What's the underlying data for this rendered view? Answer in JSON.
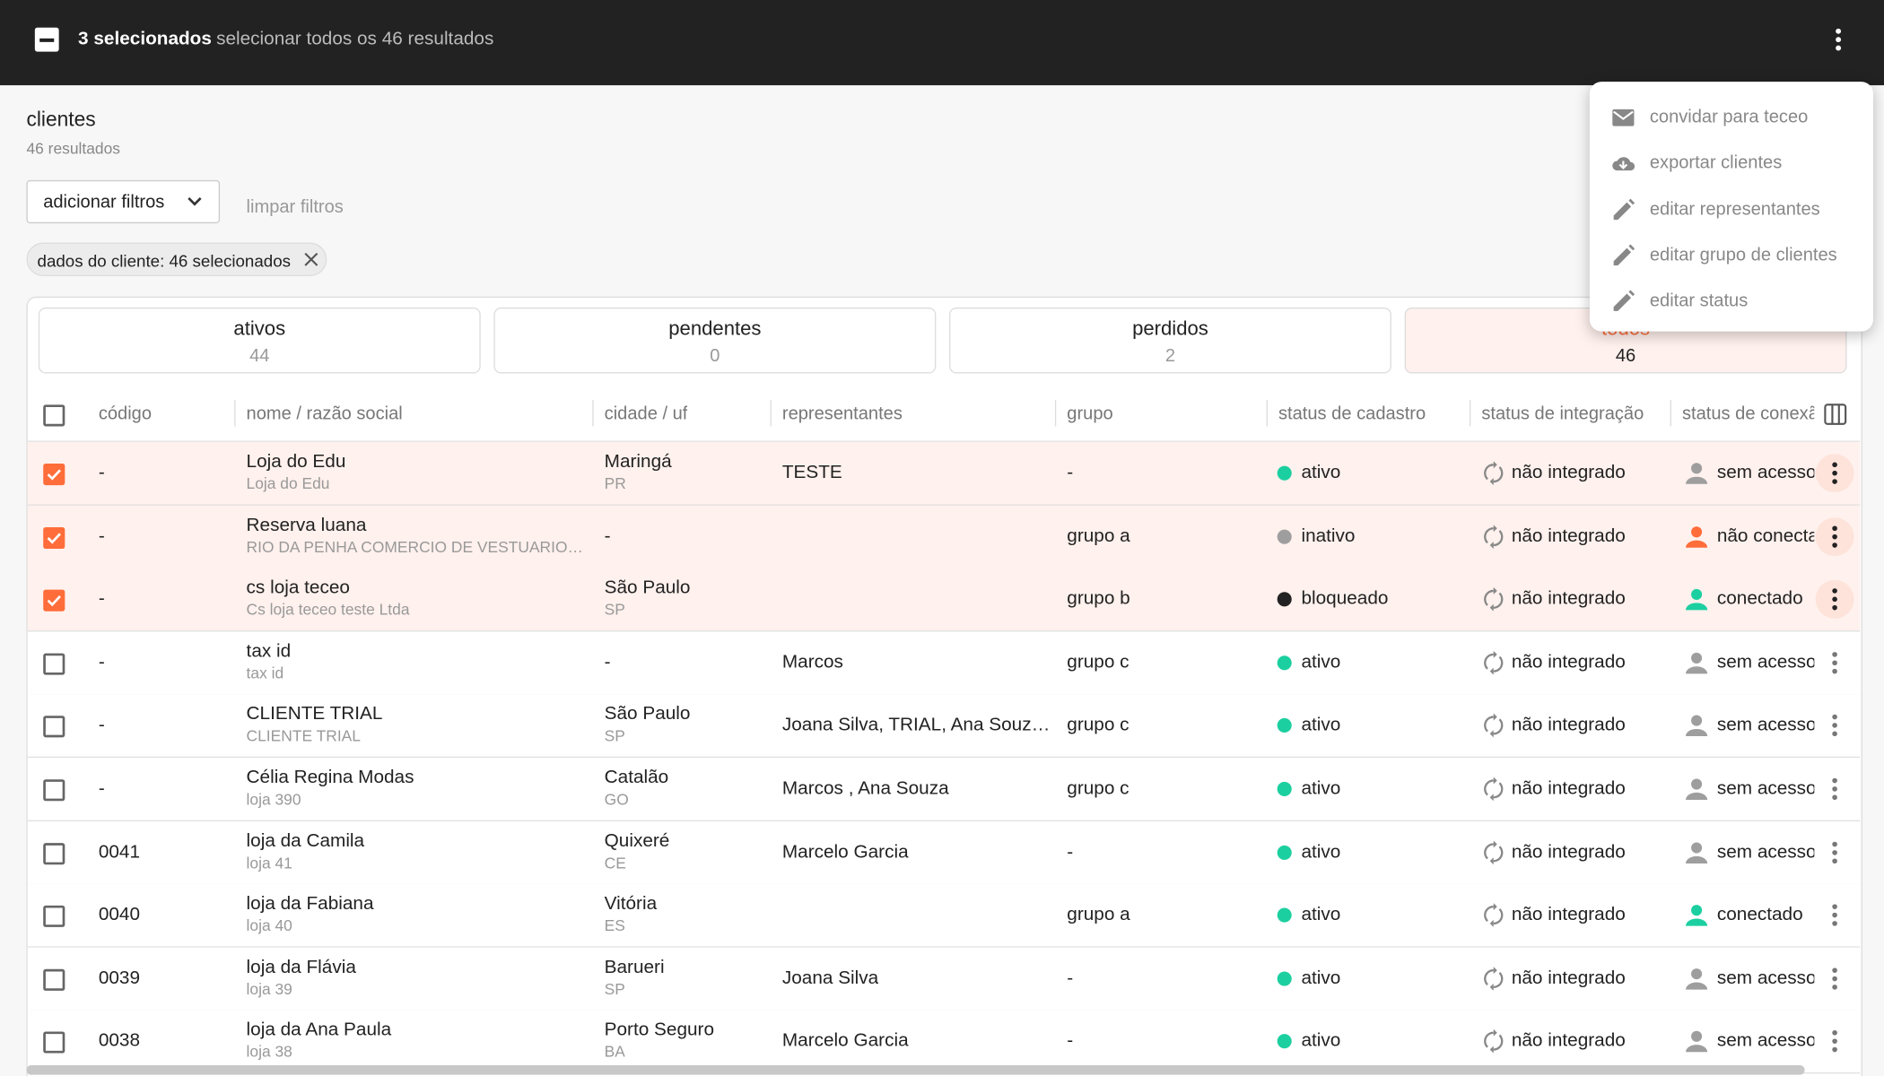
{
  "topbar": {
    "selected": "3 selecionados",
    "select_all": "selecionar todos os 46 resultados"
  },
  "menu": [
    {
      "label": "convidar para teceo",
      "icon": "mail"
    },
    {
      "label": "exportar clientes",
      "icon": "cloud"
    },
    {
      "label": "editar representantes",
      "icon": "pencil"
    },
    {
      "label": "editar grupo de clientes",
      "icon": "pencil"
    },
    {
      "label": "editar status",
      "icon": "pencil"
    }
  ],
  "header": {
    "title": "clientes",
    "subtitle": "46 resultados"
  },
  "filters": {
    "add": "adicionar filtros",
    "clear": "limpar filtros",
    "chip": "dados do cliente: 46 selecionados"
  },
  "tabs": [
    {
      "label": "ativos",
      "count": 44
    },
    {
      "label": "pendentes",
      "count": 0
    },
    {
      "label": "perdidos",
      "count": 2
    },
    {
      "label": "todos",
      "count": 46,
      "active": true
    }
  ],
  "table": {
    "columns": [
      "código",
      "nome / razão social",
      "cidade / uf",
      "representantes",
      "grupo",
      "status de cadastro",
      "status de integração",
      "status de conexão"
    ],
    "rows": [
      {
        "selected": true,
        "code": "-",
        "name": "Loja do Edu",
        "legal": "Loja do Edu",
        "city": "Maringá",
        "uf": "PR",
        "reps": "TESTE",
        "group": "-",
        "status": "ativo",
        "status_color": "#1ccfa0",
        "integration": "não integrado",
        "connection": "sem acesso",
        "connection_color": "#9e9e9e"
      },
      {
        "selected": true,
        "code": "-",
        "name": "Reserva luana",
        "legal": "RIO DA PENHA COMERCIO DE VESTUARIO…",
        "city": "-",
        "uf": null,
        "reps": null,
        "group": "grupo a",
        "status": "inativo",
        "status_color": "#9e9e9e",
        "integration": "não integrado",
        "connection": "não conectado",
        "connection_color": "#ff6d3a"
      },
      {
        "selected": true,
        "code": "-",
        "name": "cs loja teceo",
        "legal": "Cs loja teceo teste Ltda",
        "city": "São Paulo",
        "uf": "SP",
        "reps": null,
        "group": "grupo b",
        "status": "bloqueado",
        "status_color": "#222222",
        "integration": "não integrado",
        "connection": "conectado",
        "connection_color": "#1ccfa0"
      },
      {
        "selected": false,
        "code": "-",
        "name": "tax id",
        "legal": "tax id",
        "city": "-",
        "uf": null,
        "reps": "Marcos",
        "group": "grupo c",
        "status": "ativo",
        "status_color": "#1ccfa0",
        "integration": "não integrado",
        "connection": "sem acesso",
        "connection_color": "#9e9e9e"
      },
      {
        "selected": false,
        "code": "-",
        "name": "CLIENTE TRIAL",
        "legal": "CLIENTE TRIAL",
        "city": "São Paulo",
        "uf": "SP",
        "reps": "Joana Silva, TRIAL, Ana Souz…",
        "group": "grupo c",
        "status": "ativo",
        "status_color": "#1ccfa0",
        "integration": "não integrado",
        "connection": "sem acesso",
        "connection_color": "#9e9e9e"
      },
      {
        "selected": false,
        "code": "-",
        "name": "Célia Regina Modas",
        "legal": "loja 390",
        "city": "Catalão",
        "uf": "GO",
        "reps": "Marcos , Ana Souza",
        "group": "grupo c",
        "status": "ativo",
        "status_color": "#1ccfa0",
        "integration": "não integrado",
        "connection": "sem acesso",
        "connection_color": "#9e9e9e"
      },
      {
        "selected": false,
        "code": "0041",
        "name": "loja da Camila",
        "legal": "loja 41",
        "city": "Quixeré",
        "uf": "CE",
        "reps": "Marcelo Garcia",
        "group": "-",
        "status": "ativo",
        "status_color": "#1ccfa0",
        "integration": "não integrado",
        "connection": "sem acesso",
        "connection_color": "#9e9e9e"
      },
      {
        "selected": false,
        "code": "0040",
        "name": "loja da Fabiana",
        "legal": "loja 40",
        "city": "Vitória",
        "uf": "ES",
        "reps": null,
        "group": "grupo a",
        "status": "ativo",
        "status_color": "#1ccfa0",
        "integration": "não integrado",
        "connection": "conectado",
        "connection_color": "#1ccfa0"
      },
      {
        "selected": false,
        "code": "0039",
        "name": "loja da Flávia",
        "legal": "loja 39",
        "city": "Barueri",
        "uf": "SP",
        "reps": "Joana Silva",
        "group": "-",
        "status": "ativo",
        "status_color": "#1ccfa0",
        "integration": "não integrado",
        "connection": "sem acesso",
        "connection_color": "#9e9e9e"
      },
      {
        "selected": false,
        "code": "0038",
        "name": "loja da Ana Paula",
        "legal": "loja 38",
        "city": "Porto Seguro",
        "uf": "BA",
        "reps": "Marcelo Garcia",
        "group": "-",
        "status": "ativo",
        "status_color": "#1ccfa0",
        "integration": "não integrado",
        "connection": "sem acesso",
        "connection_color": "#9e9e9e"
      }
    ]
  }
}
